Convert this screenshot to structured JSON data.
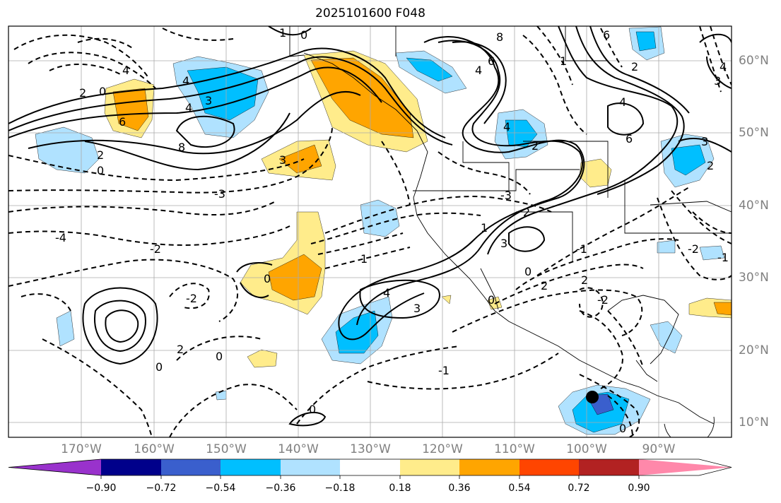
{
  "title": "2025101600 F048",
  "lon_labels": [
    "170°W",
    "160°W",
    "150°W",
    "140°W",
    "130°W",
    "120°W",
    "110°W",
    "100°W",
    "90°W"
  ],
  "lat_labels": [
    "60°N",
    "50°N",
    "40°N",
    "30°N",
    "20°N",
    "10°N"
  ],
  "colorbar": {
    "tick_labels": [
      "−0.90",
      "−0.72",
      "−0.54",
      "−0.36",
      "−0.18",
      "0.18",
      "0.36",
      "0.54",
      "0.72",
      "0.90"
    ],
    "colors": [
      "#9932cc",
      "#00008b",
      "#3a5fcd",
      "#00bfff",
      "#b0e2ff",
      "#ffffff",
      "#ffec8b",
      "#ffa500",
      "#ff4500",
      "#b22222",
      "#ff88aa"
    ]
  },
  "contour_labels": [
    "0",
    "4",
    "2",
    "0",
    "6",
    "4",
    "8",
    "3",
    "2",
    "0",
    "1",
    "-4",
    "-3",
    "-2",
    "3",
    "4",
    "6",
    "1",
    "4",
    "2",
    "8",
    "6",
    "6",
    "4",
    "2",
    "3",
    "4",
    "3",
    "2",
    "-2",
    "-1",
    "0",
    "0",
    "0",
    "1",
    "2",
    "-3",
    "4",
    "3",
    "2",
    "-1",
    "0",
    "-2",
    "-2",
    "-1",
    "0",
    "2",
    "2",
    "1",
    "4",
    "3",
    "0",
    "0"
  ],
  "marker": "station-dot"
}
